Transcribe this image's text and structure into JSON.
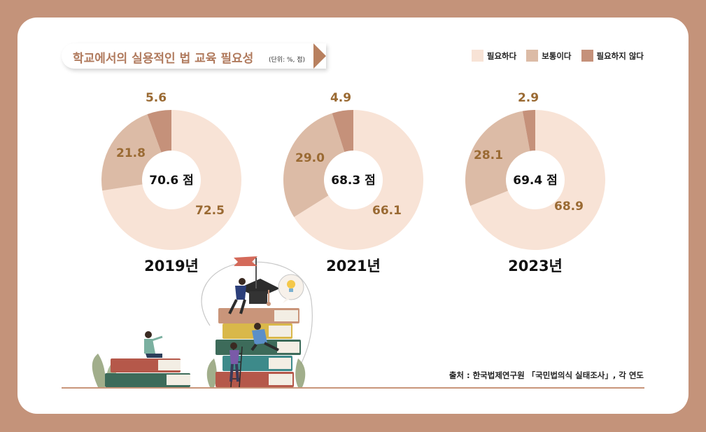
{
  "title": "학교에서의 실용적인 법 교육 필요성",
  "unit": "(단위: %, 점)",
  "legend": [
    {
      "label": "필요하다",
      "color": "#f8e3d6"
    },
    {
      "label": "보통이다",
      "color": "#dcbba6"
    },
    {
      "label": "필요하지 않다",
      "color": "#c5917a"
    }
  ],
  "source": "출처 : 한국법제연구원 「국민법의식 실태조사」, 각 연도",
  "chart_data": [
    {
      "type": "pie",
      "year": "2019년",
      "center": "70.6 점",
      "categories": [
        "필요하다",
        "보통이다",
        "필요하지 않다"
      ],
      "values": [
        72.5,
        21.8,
        5.6
      ],
      "value_labels": [
        "72.5",
        "21.8",
        "5.6"
      ]
    },
    {
      "type": "pie",
      "year": "2021년",
      "center": "68.3 점",
      "categories": [
        "필요하다",
        "보통이다",
        "필요하지 않다"
      ],
      "values": [
        66.1,
        29.0,
        4.9
      ],
      "value_labels": [
        "66.1",
        "29.0",
        "4.9"
      ]
    },
    {
      "type": "pie",
      "year": "2023년",
      "center": "69.4 점",
      "categories": [
        "필요하다",
        "보통이다",
        "필요하지 않다"
      ],
      "values": [
        68.9,
        28.1,
        2.9
      ],
      "value_labels": [
        "68.9",
        "28.1",
        "2.9"
      ]
    }
  ]
}
